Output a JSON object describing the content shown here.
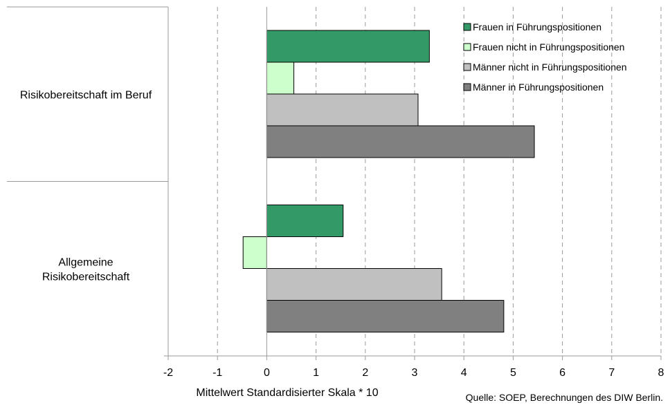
{
  "chart_data": {
    "type": "bar",
    "orientation": "horizontal",
    "categories": [
      [
        "Risikobereitschaft im Beruf"
      ],
      [
        "Allgemeine",
        "Risikobereitschaft"
      ]
    ],
    "series": [
      {
        "name": "Frauen in Führungspositionen",
        "color": "#339966",
        "values": [
          3.3,
          1.55
        ]
      },
      {
        "name": "Frauen nicht in Führungspositionen",
        "color": "#ccffcc",
        "values": [
          0.55,
          -0.48
        ]
      },
      {
        "name": "Männer nicht in Führungspositionen",
        "color": "#c0c0c0",
        "values": [
          3.07,
          3.55
        ]
      },
      {
        "name": "Männer in Führungspositionen",
        "color": "#808080",
        "values": [
          5.43,
          4.81
        ]
      }
    ],
    "xlim": [
      -2,
      8
    ],
    "xticks": [
      "-2",
      "-1",
      "0",
      "1",
      "2",
      "3",
      "4",
      "5",
      "6",
      "7",
      "8"
    ],
    "xlabel": "Mittelwert Standardisierter Skala * 10",
    "grid": "vertical dashed",
    "legend_position": "top-right",
    "source": "Quelle: SOEP, Berechnungen des DIW Berlin."
  }
}
